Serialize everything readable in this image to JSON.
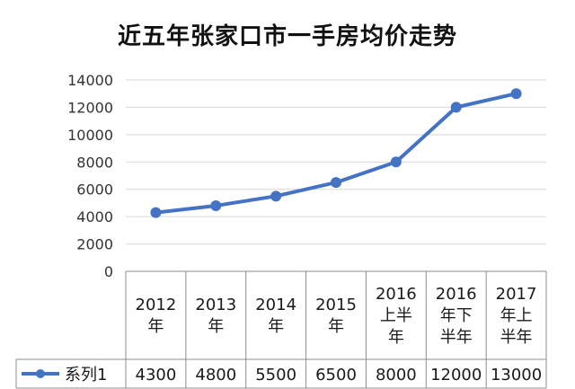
{
  "chart_data": {
    "type": "line",
    "title": "近五年张家口市一手房均价走势",
    "categories": [
      "2012\n年",
      "2013\n年",
      "2014\n年",
      "2015\n年",
      "2016\n上半\n年",
      "2016\n年下\n半年",
      "2017\n年上\n半年"
    ],
    "series": [
      {
        "name": "系列1",
        "values": [
          4300,
          4800,
          5500,
          6500,
          8000,
          12000,
          13000
        ]
      }
    ],
    "ylim": [
      0,
      14000
    ],
    "yticks": [
      0,
      2000,
      4000,
      6000,
      8000,
      10000,
      12000,
      14000
    ],
    "grid": true,
    "data_table": true,
    "series_color": "#4472C4"
  }
}
